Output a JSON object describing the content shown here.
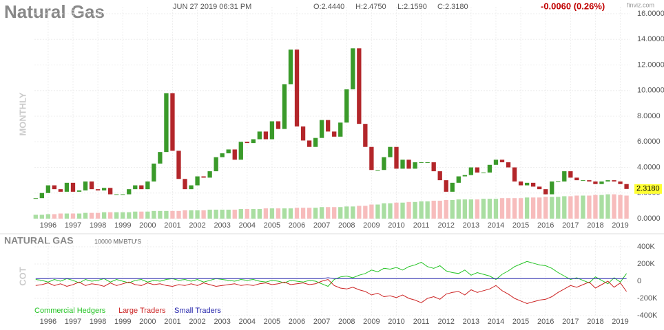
{
  "header": {
    "title": "Natural Gas",
    "datetime": "JUN 27 2019 06:31 PM",
    "open": "O:2.4440",
    "high": "H:2.4750",
    "low": "L:2.1590",
    "close": "C:2.3180",
    "change": "-0.0060 (0.26%)",
    "brand": "finviz.com",
    "period": "MONTHLY"
  },
  "chart_data": [
    {
      "type": "candlestick",
      "x": [
        1995.5,
        1995.75,
        1996,
        1996.25,
        1996.5,
        1996.75,
        1997,
        1997.25,
        1997.5,
        1997.75,
        1998,
        1998.25,
        1998.5,
        1998.75,
        1999,
        1999.25,
        1999.5,
        1999.75,
        2000,
        2000.25,
        2000.5,
        2000.75,
        2001,
        2001.25,
        2001.5,
        2001.75,
        2002,
        2002.25,
        2002.5,
        2002.75,
        2003,
        2003.25,
        2003.5,
        2003.75,
        2004,
        2004.25,
        2004.5,
        2004.75,
        2005,
        2005.25,
        2005.5,
        2005.75,
        2006,
        2006.25,
        2006.5,
        2006.75,
        2007,
        2007.25,
        2007.5,
        2007.75,
        2008,
        2008.25,
        2008.5,
        2008.75,
        2009,
        2009.25,
        2009.5,
        2009.75,
        2010,
        2010.25,
        2010.5,
        2010.75,
        2011,
        2011.25,
        2011.5,
        2011.75,
        2012,
        2012.25,
        2012.5,
        2012.75,
        2013,
        2013.25,
        2013.5,
        2013.75,
        2014,
        2014.25,
        2014.5,
        2014.75,
        2015,
        2015.25,
        2015.5,
        2015.75,
        2016,
        2016.25,
        2016.5,
        2016.75,
        2017,
        2017.25,
        2017.5,
        2017.75,
        2018,
        2018.25,
        2018.5,
        2018.75,
        2019,
        2019.25
      ],
      "values": [
        1.6,
        2.0,
        2.6,
        2.3,
        2.1,
        2.8,
        2.1,
        2.2,
        2.9,
        2.3,
        2.2,
        2.4,
        1.9,
        1.9,
        1.9,
        2.3,
        2.6,
        2.3,
        2.9,
        4.3,
        5.2,
        9.8,
        5.3,
        3.1,
        2.3,
        2.6,
        3.3,
        3.2,
        3.7,
        4.8,
        5.1,
        5.4,
        4.6,
        6.0,
        5.9,
        6.2,
        6.8,
        6.2,
        7.6,
        7.0,
        10.5,
        13.2,
        7.2,
        6.1,
        5.6,
        6.3,
        7.7,
        6.8,
        6.4,
        7.5,
        10.1,
        13.3,
        7.4,
        5.6,
        3.8,
        3.8,
        4.8,
        5.6,
        3.9,
        4.6,
        3.9,
        4.4,
        4.4,
        4.4,
        3.7,
        3.0,
        2.1,
        2.8,
        3.3,
        3.4,
        4.0,
        3.6,
        3.6,
        4.2,
        4.6,
        4.4,
        4.0,
        2.9,
        2.6,
        2.8,
        2.5,
        2.3,
        1.9,
        2.9,
        2.9,
        3.7,
        3.2,
        3.0,
        3.0,
        2.9,
        2.7,
        2.9,
        3.0,
        2.9,
        2.7,
        2.318
      ],
      "volume": [
        0.3,
        0.3,
        0.35,
        0.35,
        0.4,
        0.4,
        0.4,
        0.4,
        0.45,
        0.45,
        0.45,
        0.5,
        0.5,
        0.5,
        0.5,
        0.5,
        0.55,
        0.55,
        0.55,
        0.6,
        0.6,
        0.6,
        0.6,
        0.6,
        0.65,
        0.65,
        0.65,
        0.65,
        0.7,
        0.7,
        0.7,
        0.7,
        0.7,
        0.75,
        0.75,
        0.75,
        0.75,
        0.8,
        0.8,
        0.8,
        0.8,
        0.8,
        0.85,
        0.85,
        0.85,
        0.85,
        0.9,
        0.9,
        0.9,
        0.9,
        0.95,
        0.95,
        1.0,
        1.0,
        1.1,
        1.1,
        1.2,
        1.2,
        1.25,
        1.25,
        1.3,
        1.3,
        1.35,
        1.35,
        1.4,
        1.4,
        1.45,
        1.45,
        1.5,
        1.5,
        1.5,
        1.5,
        1.55,
        1.55,
        1.55,
        1.6,
        1.6,
        1.6,
        1.6,
        1.65,
        1.65,
        1.65,
        1.7,
        1.7,
        1.7,
        1.75,
        1.75,
        1.8,
        1.8,
        1.8,
        1.85,
        1.85,
        1.9,
        1.9,
        1.85,
        1.8
      ],
      "last_value_label": "2.3180",
      "up_color": "#3a9a2a",
      "down_color": "#b3262a",
      "volume_up_color": "#a9dea1",
      "volume_down_color": "#f7bcbc",
      "label_color": "#ffff33",
      "xlim": [
        1995.45,
        2019.4
      ],
      "xticks": [
        1996,
        1997,
        1998,
        1999,
        2000,
        2001,
        2002,
        2003,
        2004,
        2005,
        2006,
        2007,
        2008,
        2009,
        2010,
        2011,
        2012,
        2013,
        2014,
        2015,
        2016,
        2017,
        2018,
        2019
      ],
      "ylim": [
        0,
        16
      ],
      "yticks": [
        {
          "value": 0,
          "label": "0.0000"
        },
        {
          "value": 2,
          "label": "2.0000"
        },
        {
          "value": 4,
          "label": "4.0000"
        },
        {
          "value": 6,
          "label": "6.0000"
        },
        {
          "value": 8,
          "label": "8.0000"
        },
        {
          "value": 10,
          "label": "10.0000"
        },
        {
          "value": 12,
          "label": "12.0000"
        },
        {
          "value": 14,
          "label": "14.0000"
        },
        {
          "value": 16,
          "label": "16.0000"
        }
      ],
      "grid": true
    },
    {
      "type": "line",
      "title": "NATURAL GAS",
      "subtitle": "10000 MMBTU'S",
      "ylabel": "COT",
      "x": [
        1995.5,
        1995.75,
        1996,
        1996.25,
        1996.5,
        1996.75,
        1997,
        1997.25,
        1997.5,
        1997.75,
        1998,
        1998.25,
        1998.5,
        1998.75,
        1999,
        1999.25,
        1999.5,
        1999.75,
        2000,
        2000.25,
        2000.5,
        2000.75,
        2001,
        2001.25,
        2001.5,
        2001.75,
        2002,
        2002.25,
        2002.5,
        2002.75,
        2003,
        2003.25,
        2003.5,
        2003.75,
        2004,
        2004.25,
        2004.5,
        2004.75,
        2005,
        2005.25,
        2005.5,
        2005.75,
        2006,
        2006.25,
        2006.5,
        2006.75,
        2007,
        2007.25,
        2007.5,
        2007.75,
        2008,
        2008.25,
        2008.5,
        2008.75,
        2009,
        2009.25,
        2009.5,
        2009.75,
        2010,
        2010.25,
        2010.5,
        2010.75,
        2011,
        2011.25,
        2011.5,
        2011.75,
        2012,
        2012.25,
        2012.5,
        2012.75,
        2013,
        2013.25,
        2013.5,
        2013.75,
        2014,
        2014.25,
        2014.5,
        2014.75,
        2015,
        2015.25,
        2015.5,
        2015.75,
        2016,
        2016.25,
        2016.5,
        2016.75,
        2017,
        2017.25,
        2017.5,
        2017.75,
        2018,
        2018.25,
        2018.5,
        2018.75,
        2019,
        2019.25
      ],
      "series": [
        {
          "name": "Commercial Hedgers",
          "color": "#22c322",
          "values": [
            20000,
            10000,
            -10000,
            20000,
            0,
            30000,
            10000,
            -20000,
            20000,
            0,
            10000,
            30000,
            -10000,
            20000,
            0,
            -20000,
            10000,
            20000,
            -10000,
            10000,
            0,
            20000,
            30000,
            10000,
            20000,
            0,
            20000,
            -10000,
            10000,
            30000,
            20000,
            10000,
            0,
            20000,
            10000,
            20000,
            0,
            -10000,
            10000,
            0,
            -20000,
            10000,
            0,
            -10000,
            10000,
            0,
            -30000,
            -60000,
            20000,
            50000,
            60000,
            40000,
            70000,
            90000,
            130000,
            110000,
            150000,
            140000,
            160000,
            130000,
            170000,
            190000,
            220000,
            170000,
            150000,
            180000,
            120000,
            100000,
            90000,
            130000,
            70000,
            100000,
            80000,
            60000,
            20000,
            80000,
            120000,
            170000,
            200000,
            230000,
            210000,
            190000,
            180000,
            150000,
            100000,
            60000,
            20000,
            40000,
            10000,
            -20000,
            50000,
            10000,
            -30000,
            40000,
            -10000,
            90000
          ]
        },
        {
          "name": "Large Traders",
          "color": "#cc2222",
          "values": [
            -50000,
            -40000,
            -20000,
            -50000,
            -30000,
            -60000,
            -40000,
            -10000,
            -50000,
            -30000,
            -40000,
            -60000,
            -20000,
            -50000,
            -30000,
            -10000,
            -40000,
            -50000,
            -20000,
            -40000,
            -30000,
            -50000,
            -60000,
            -40000,
            -50000,
            -30000,
            -50000,
            -20000,
            -40000,
            -60000,
            -50000,
            -40000,
            -30000,
            -50000,
            -40000,
            -50000,
            -30000,
            -20000,
            -40000,
            -30000,
            -10000,
            -40000,
            -30000,
            -20000,
            -40000,
            -30000,
            0,
            20000,
            -50000,
            -80000,
            -90000,
            -70000,
            -100000,
            -120000,
            -160000,
            -140000,
            -180000,
            -170000,
            -190000,
            -160000,
            -200000,
            -220000,
            -250000,
            -200000,
            -180000,
            -210000,
            -150000,
            -130000,
            -120000,
            -160000,
            -100000,
            -130000,
            -110000,
            -90000,
            -50000,
            -110000,
            -150000,
            -200000,
            -230000,
            -260000,
            -240000,
            -220000,
            -210000,
            -180000,
            -130000,
            -90000,
            -50000,
            -70000,
            -40000,
            -10000,
            -80000,
            -40000,
            0,
            -70000,
            -20000,
            -120000
          ]
        },
        {
          "name": "Small Traders",
          "color": "#2222aa",
          "values": [
            30000,
            30000,
            30000,
            35000,
            30000,
            30000,
            30000,
            30000,
            30000,
            30000,
            30000,
            30000,
            30000,
            30000,
            30000,
            30000,
            30000,
            30000,
            30000,
            30000,
            30000,
            30000,
            30000,
            30000,
            30000,
            30000,
            30000,
            30000,
            30000,
            30000,
            30000,
            30000,
            30000,
            30000,
            30000,
            30000,
            30000,
            30000,
            30000,
            30000,
            30000,
            30000,
            30000,
            30000,
            30000,
            30000,
            30000,
            40000,
            30000,
            30000,
            30000,
            30000,
            30000,
            30000,
            30000,
            30000,
            30000,
            30000,
            30000,
            30000,
            30000,
            30000,
            30000,
            30000,
            30000,
            30000,
            30000,
            30000,
            30000,
            30000,
            30000,
            30000,
            30000,
            30000,
            30000,
            30000,
            30000,
            30000,
            30000,
            30000,
            30000,
            30000,
            30000,
            30000,
            30000,
            30000,
            30000,
            30000,
            30000,
            30000,
            30000,
            30000,
            30000,
            30000,
            30000,
            30000
          ]
        }
      ],
      "xlim": [
        1995.45,
        2019.4
      ],
      "xticks": [
        1996,
        1997,
        1998,
        1999,
        2000,
        2001,
        2002,
        2003,
        2004,
        2005,
        2006,
        2007,
        2008,
        2009,
        2010,
        2011,
        2012,
        2013,
        2014,
        2015,
        2016,
        2017,
        2018,
        2019
      ],
      "ylim": [
        -400000,
        400000
      ],
      "yticks": [
        {
          "value": 400000,
          "label": "400K"
        },
        {
          "value": 200000,
          "label": "200K"
        },
        {
          "value": 0,
          "label": "0"
        },
        {
          "value": -200000,
          "label": "-200K"
        },
        {
          "value": -400000,
          "label": "-400K"
        }
      ],
      "grid": true
    }
  ]
}
